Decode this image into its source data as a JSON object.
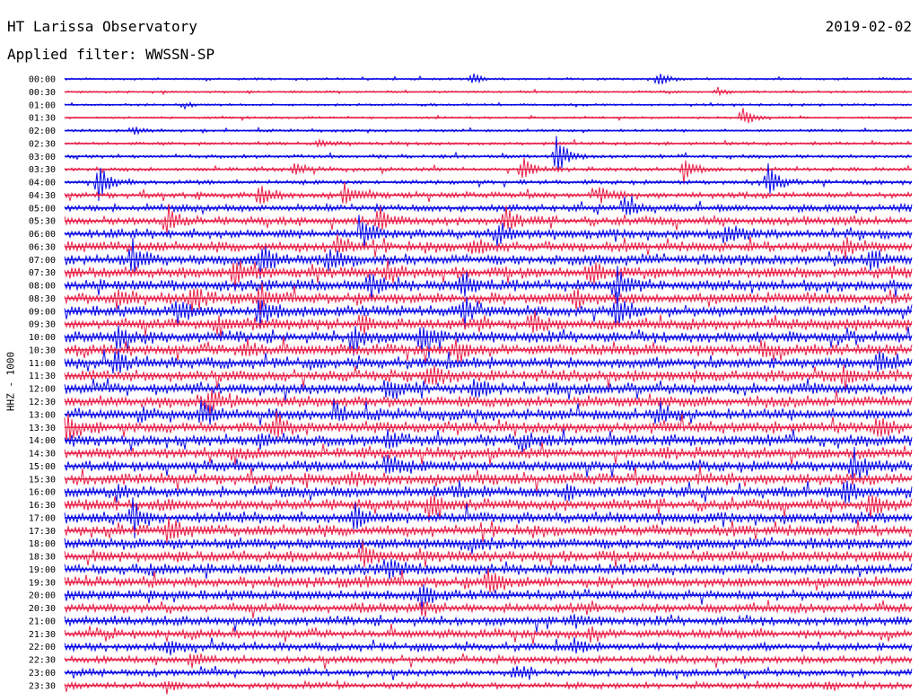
{
  "header": {
    "title": "HT Larissa Observatory",
    "date": "2019-02-02",
    "filter": "Applied filter: WWSSN-SP"
  },
  "chart_data": {
    "type": "line",
    "ylabel": "HHZ - 1000",
    "trace_labels": [
      "00:00",
      "00:30",
      "01:00",
      "01:30",
      "02:00",
      "02:30",
      "03:00",
      "03:30",
      "04:00",
      "04:30",
      "05:00",
      "05:30",
      "06:00",
      "06:30",
      "07:00",
      "07:30",
      "08:00",
      "08:30",
      "09:00",
      "09:30",
      "10:00",
      "10:30",
      "11:00",
      "11:30",
      "12:00",
      "12:30",
      "13:00",
      "13:30",
      "14:00",
      "14:30",
      "15:00",
      "15:30",
      "16:00",
      "16:30",
      "17:00",
      "17:30",
      "18:00",
      "18:30",
      "19:00",
      "19:30",
      "20:00",
      "20:30",
      "21:00",
      "21:30",
      "22:00",
      "22:30",
      "23:00",
      "23:30"
    ],
    "colors": [
      "#0a0ae6",
      "#e8224a"
    ],
    "noise_levels": [
      1.0,
      1.0,
      1.0,
      1.0,
      1.2,
      1.4,
      1.6,
      1.8,
      2.0,
      2.6,
      3.2,
      3.8,
      4.2,
      4.5,
      4.8,
      5.0,
      5.0,
      5.0,
      5.0,
      5.0,
      5.0,
      5.0,
      5.0,
      5.0,
      5.0,
      5.0,
      5.0,
      5.0,
      5.0,
      5.0,
      5.0,
      5.0,
      5.0,
      5.0,
      5.0,
      5.0,
      5.0,
      5.0,
      4.8,
      4.8,
      4.5,
      4.2,
      4.0,
      3.8,
      3.5,
      3.3,
      3.1,
      3.0
    ],
    "events": [
      [
        [
          0.48,
          6
        ],
        [
          0.7,
          10
        ]
      ],
      [
        [
          0.77,
          5
        ]
      ],
      [
        [
          0.14,
          4
        ]
      ],
      [
        [
          0.8,
          12
        ]
      ],
      [
        [
          0.08,
          5
        ]
      ],
      [
        [
          0.3,
          5
        ]
      ],
      [
        [
          0.58,
          25
        ]
      ],
      [
        [
          0.27,
          8
        ],
        [
          0.54,
          15
        ],
        [
          0.73,
          15
        ]
      ],
      [
        [
          0.04,
          22
        ],
        [
          0.83,
          22
        ]
      ],
      [
        [
          0.23,
          15
        ],
        [
          0.33,
          18
        ],
        [
          0.63,
          12
        ]
      ],
      [
        [
          0.66,
          20
        ]
      ],
      [
        [
          0.12,
          20
        ],
        [
          0.37,
          15
        ],
        [
          0.52,
          15
        ]
      ],
      [
        [
          0.35,
          20
        ],
        [
          0.51,
          15
        ],
        [
          0.78,
          15
        ]
      ],
      [
        [
          0.32,
          15
        ],
        [
          0.48,
          12
        ],
        [
          0.92,
          12
        ]
      ],
      [
        [
          0.08,
          20
        ],
        [
          0.23,
          25
        ],
        [
          0.31,
          18
        ],
        [
          0.95,
          15
        ]
      ],
      [
        [
          0.2,
          20
        ],
        [
          0.38,
          15
        ],
        [
          0.62,
          15
        ]
      ],
      [
        [
          0.36,
          15
        ],
        [
          0.47,
          15
        ],
        [
          0.65,
          25
        ]
      ],
      [
        [
          0.06,
          15
        ],
        [
          0.15,
          15
        ],
        [
          0.23,
          15
        ],
        [
          0.6,
          15
        ]
      ],
      [
        [
          0.13,
          20
        ],
        [
          0.23,
          20
        ],
        [
          0.47,
          20
        ],
        [
          0.65,
          25
        ]
      ],
      [
        [
          0.18,
          15
        ],
        [
          0.35,
          15
        ],
        [
          0.55,
          15
        ]
      ],
      [
        [
          0.06,
          15
        ],
        [
          0.34,
          20
        ],
        [
          0.42,
          20
        ]
      ],
      [
        [
          0.21,
          15
        ],
        [
          0.46,
          15
        ],
        [
          0.82,
          15
        ]
      ],
      [
        [
          0.06,
          15
        ],
        [
          0.96,
          15
        ]
      ],
      [
        [
          0.43,
          15
        ],
        [
          0.92,
          15
        ]
      ],
      [
        [
          0.38,
          20
        ],
        [
          0.48,
          15
        ]
      ],
      [
        [
          0.17,
          15
        ]
      ],
      [
        [
          0.09,
          12
        ],
        [
          0.16,
          18
        ],
        [
          0.32,
          15
        ],
        [
          0.7,
          15
        ]
      ],
      [
        [
          0.0,
          18
        ],
        [
          0.25,
          15
        ],
        [
          0.96,
          15
        ]
      ],
      [
        [
          0.23,
          8
        ],
        [
          0.38,
          12
        ],
        [
          0.54,
          12
        ]
      ],
      [
        [
          0.2,
          8
        ]
      ],
      [
        [
          0.38,
          18
        ],
        [
          0.93,
          18
        ]
      ],
      [
        [
          0.34,
          8
        ]
      ],
      [
        [
          0.06,
          12
        ],
        [
          0.46,
          12
        ],
        [
          0.59,
          12
        ],
        [
          0.92,
          18
        ]
      ],
      [
        [
          0.43,
          18
        ],
        [
          0.95,
          15
        ]
      ],
      [
        [
          0.08,
          22
        ],
        [
          0.34,
          20
        ]
      ],
      [
        [
          0.12,
          15
        ]
      ],
      [
        [
          0.48,
          10
        ]
      ],
      [
        [
          0.35,
          12
        ]
      ],
      [
        [
          0.38,
          18
        ]
      ],
      [
        [
          0.5,
          18
        ]
      ],
      [
        [
          0.42,
          18
        ]
      ],
      [
        [
          0.42,
          8
        ]
      ],
      [
        [
          0.6,
          8
        ]
      ],
      [
        [
          0.62,
          8
        ]
      ],
      [
        [
          0.12,
          10
        ],
        [
          0.6,
          10
        ]
      ],
      [
        [
          0.15,
          8
        ]
      ],
      [
        [
          0.53,
          10
        ]
      ],
      [
        [
          0.12,
          8
        ],
        [
          0.9,
          8
        ]
      ]
    ]
  }
}
